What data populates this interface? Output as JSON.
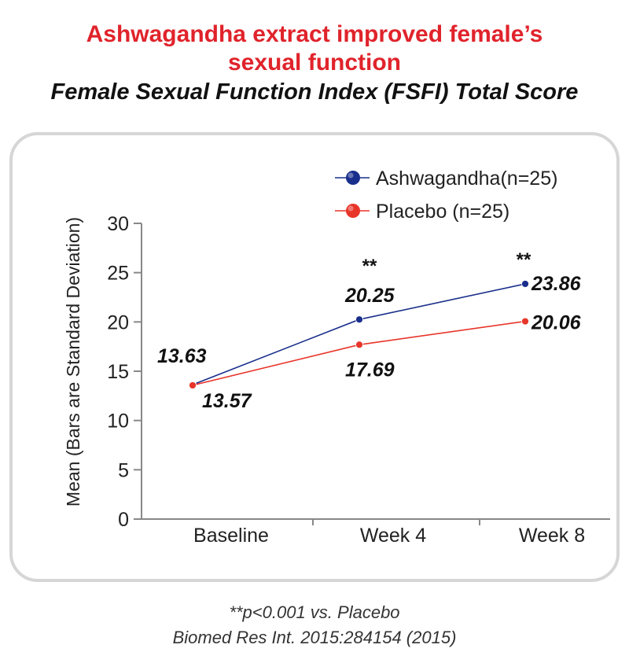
{
  "header": {
    "title_line1": "Ashwagandha extract improved female’s",
    "title_line2": "sexual function",
    "subtitle": "Female Sexual Function Index (FSFI) Total Score"
  },
  "footer": {
    "line1": "**p<0.001 vs. Placebo",
    "line2": "Biomed Res Int. 2015:284154 (2015)"
  },
  "chart_data": {
    "type": "line",
    "categories": [
      "Baseline",
      "Week 4",
      "Week 8"
    ],
    "ylabel": "Mean (Bars are Standard Deviation)",
    "ylim": [
      0,
      30
    ],
    "yticks": [
      0,
      5,
      10,
      15,
      20,
      25,
      30
    ],
    "grid": false,
    "legend_position": "top-right",
    "series": [
      {
        "name": "Ashwagandha(n=25)",
        "color": "#1a2f8c",
        "values": [
          13.63,
          20.25,
          23.86
        ],
        "labels": [
          "13.63",
          "20.25",
          "23.86"
        ]
      },
      {
        "name": "Placebo (n=25)",
        "color": "#e8352a",
        "values": [
          13.57,
          17.69,
          20.06
        ],
        "labels": [
          "13.57",
          "17.69",
          "20.06"
        ]
      }
    ],
    "annotations": [
      {
        "text": "**",
        "category": "Week 4"
      },
      {
        "text": "**",
        "category": "Week 8"
      }
    ]
  }
}
